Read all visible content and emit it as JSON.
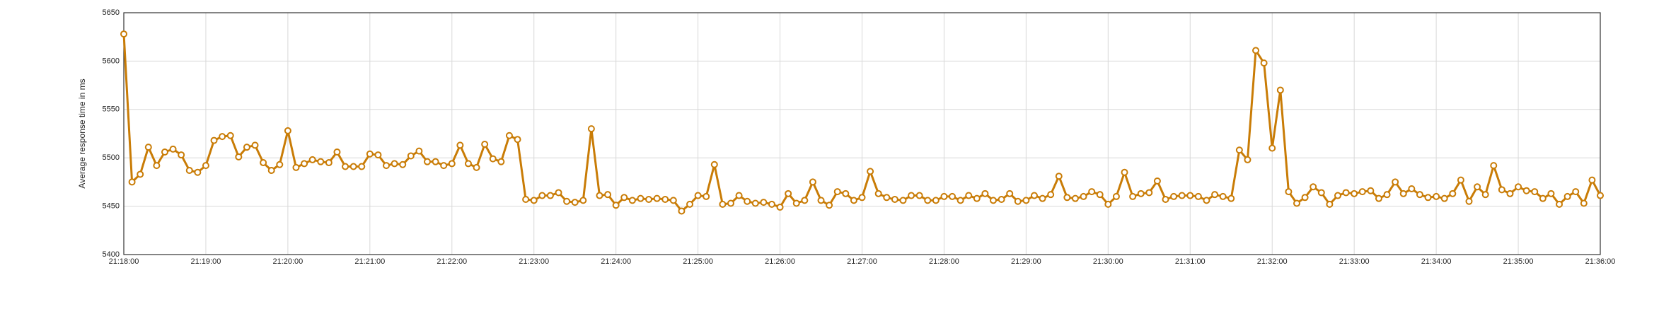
{
  "chart_data": {
    "type": "line",
    "y_label": "Average response time in ms",
    "x": [
      "21:18:00",
      "21:18:06",
      "21:18:12",
      "21:18:18",
      "21:18:24",
      "21:18:30",
      "21:18:36",
      "21:18:42",
      "21:18:48",
      "21:18:54",
      "21:19:00",
      "21:19:06",
      "21:19:12",
      "21:19:18",
      "21:19:24",
      "21:19:30",
      "21:19:36",
      "21:19:42",
      "21:19:48",
      "21:19:54",
      "21:20:00",
      "21:20:06",
      "21:20:12",
      "21:20:18",
      "21:20:24",
      "21:20:30",
      "21:20:36",
      "21:20:42",
      "21:20:48",
      "21:20:54",
      "21:21:00",
      "21:21:06",
      "21:21:12",
      "21:21:18",
      "21:21:24",
      "21:21:30",
      "21:21:36",
      "21:21:42",
      "21:21:48",
      "21:21:54",
      "21:22:00",
      "21:22:06",
      "21:22:12",
      "21:22:18",
      "21:22:24",
      "21:22:30",
      "21:22:36",
      "21:22:42",
      "21:22:48",
      "21:22:54",
      "21:23:00",
      "21:23:06",
      "21:23:12",
      "21:23:18",
      "21:23:24",
      "21:23:30",
      "21:23:36",
      "21:23:42",
      "21:23:48",
      "21:23:54",
      "21:24:00",
      "21:24:06",
      "21:24:12",
      "21:24:18",
      "21:24:24",
      "21:24:30",
      "21:24:36",
      "21:24:42",
      "21:24:48",
      "21:24:54",
      "21:25:00",
      "21:25:06",
      "21:25:12",
      "21:25:18",
      "21:25:24",
      "21:25:30",
      "21:25:36",
      "21:25:42",
      "21:25:48",
      "21:25:54",
      "21:26:00",
      "21:26:06",
      "21:26:12",
      "21:26:18",
      "21:26:24",
      "21:26:30",
      "21:26:36",
      "21:26:42",
      "21:26:48",
      "21:26:54",
      "21:27:00",
      "21:27:06",
      "21:27:12",
      "21:27:18",
      "21:27:24",
      "21:27:30",
      "21:27:36",
      "21:27:42",
      "21:27:48",
      "21:27:54",
      "21:28:00",
      "21:28:06",
      "21:28:12",
      "21:28:18",
      "21:28:24",
      "21:28:30",
      "21:28:36",
      "21:28:42",
      "21:28:48",
      "21:28:54",
      "21:29:00",
      "21:29:06",
      "21:29:12",
      "21:29:18",
      "21:29:24",
      "21:29:30",
      "21:29:36",
      "21:29:42",
      "21:29:48",
      "21:29:54",
      "21:30:00",
      "21:30:06",
      "21:30:12",
      "21:30:18",
      "21:30:24",
      "21:30:30",
      "21:30:36",
      "21:30:42",
      "21:30:48",
      "21:30:54",
      "21:31:00",
      "21:31:06",
      "21:31:12",
      "21:31:18",
      "21:31:24",
      "21:31:30",
      "21:31:36",
      "21:31:42",
      "21:31:48",
      "21:31:54",
      "21:32:00",
      "21:32:06",
      "21:32:12",
      "21:32:18",
      "21:32:24",
      "21:32:30",
      "21:32:36",
      "21:32:42",
      "21:32:48",
      "21:32:54",
      "21:33:00",
      "21:33:06",
      "21:33:12",
      "21:33:18",
      "21:33:24",
      "21:33:30",
      "21:33:36",
      "21:33:42",
      "21:33:48",
      "21:33:54",
      "21:34:00",
      "21:34:06",
      "21:34:12",
      "21:34:18",
      "21:34:24",
      "21:34:30",
      "21:34:36",
      "21:34:42",
      "21:34:48",
      "21:34:54",
      "21:35:00",
      "21:35:06",
      "21:35:12",
      "21:35:18",
      "21:35:24",
      "21:35:30",
      "21:35:36",
      "21:35:42",
      "21:35:48",
      "21:35:54",
      "21:36:00"
    ],
    "series": [
      {
        "color": "#c97c06",
        "values": [
          5628,
          5475,
          5483,
          5511,
          5492,
          5506,
          5509,
          5503,
          5487,
          5485,
          5492,
          5518,
          5522,
          5523,
          5501,
          5511,
          5513,
          5495,
          5487,
          5493,
          5528,
          5490,
          5494,
          5498,
          5496,
          5495,
          5506,
          5491,
          5491,
          5491,
          5504,
          5503,
          5492,
          5494,
          5493,
          5502,
          5507,
          5496,
          5496,
          5492,
          5494,
          5513,
          5494,
          5490,
          5514,
          5499,
          5496,
          5523,
          5519,
          5457,
          5456,
          5461,
          5461,
          5464,
          5455,
          5454,
          5456,
          5530,
          5461,
          5462,
          5451,
          5459,
          5456,
          5458,
          5457,
          5458,
          5457,
          5456,
          5445,
          5452,
          5461,
          5460,
          5493,
          5452,
          5453,
          5461,
          5455,
          5453,
          5454,
          5452,
          5449,
          5463,
          5453,
          5456,
          5475,
          5456,
          5451,
          5465,
          5463,
          5456,
          5459,
          5486,
          5463,
          5459,
          5457,
          5456,
          5461,
          5461,
          5456,
          5456,
          5460,
          5460,
          5456,
          5461,
          5458,
          5463,
          5456,
          5457,
          5463,
          5455,
          5456,
          5461,
          5458,
          5462,
          5481,
          5459,
          5458,
          5460,
          5465,
          5462,
          5452,
          5460,
          5485,
          5460,
          5463,
          5464,
          5476,
          5457,
          5460,
          5461,
          5461,
          5460,
          5456,
          5462,
          5460,
          5458,
          5508,
          5498,
          5611,
          5598,
          5510,
          5570,
          5465,
          5453,
          5459,
          5470,
          5464,
          5452,
          5461,
          5464,
          5463,
          5465,
          5466,
          5458,
          5462,
          5475,
          5463,
          5468,
          5462,
          5459,
          5460,
          5458,
          5463,
          5477,
          5455,
          5470,
          5462,
          5492,
          5467,
          5463,
          5470,
          5466,
          5465,
          5458,
          5463,
          5452,
          5460,
          5465,
          5453,
          5477,
          5461
        ]
      }
    ],
    "xlim": [
      "21:18:00",
      "21:36:00"
    ],
    "xticks": [
      "21:18:00",
      "21:19:00",
      "21:20:00",
      "21:21:00",
      "21:22:00",
      "21:23:00",
      "21:24:00",
      "21:25:00",
      "21:26:00",
      "21:27:00",
      "21:28:00",
      "21:29:00",
      "21:30:00",
      "21:31:00",
      "21:32:00",
      "21:33:00",
      "21:34:00",
      "21:35:00",
      "21:36:00"
    ],
    "ylim": [
      5400,
      5650
    ],
    "yticks": [
      5400,
      5450,
      5500,
      5550,
      5600,
      5650
    ],
    "grid": true
  }
}
